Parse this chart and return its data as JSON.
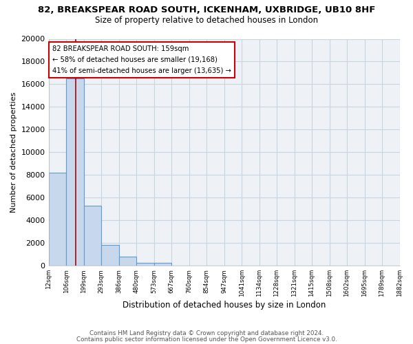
{
  "title": "82, BREAKSPEAR ROAD SOUTH, ICKENHAM, UXBRIDGE, UB10 8HF",
  "subtitle": "Size of property relative to detached houses in London",
  "xlabel": "Distribution of detached houses by size in London",
  "ylabel": "Number of detached properties",
  "bar_values": [
    8200,
    16500,
    5300,
    1850,
    800,
    270,
    230,
    0,
    0,
    0,
    0,
    0,
    0,
    0,
    0,
    0,
    0,
    0,
    0,
    0
  ],
  "bar_labels": [
    "12sqm",
    "106sqm",
    "199sqm",
    "293sqm",
    "386sqm",
    "480sqm",
    "573sqm",
    "667sqm",
    "760sqm",
    "854sqm",
    "947sqm",
    "1041sqm",
    "1134sqm",
    "1228sqm",
    "1321sqm",
    "1415sqm",
    "1508sqm",
    "1602sqm",
    "1695sqm",
    "1789sqm",
    "1882sqm"
  ],
  "bar_color": "#c8d8ec",
  "bar_edge_color": "#5b9bd5",
  "vline_color": "#aa0000",
  "vline_x": 1.53,
  "annotation_title": "82 BREAKSPEAR ROAD SOUTH: 159sqm",
  "annotation_line1": "← 58% of detached houses are smaller (19,168)",
  "annotation_line2": "41% of semi-detached houses are larger (13,635) →",
  "annotation_box_color": "#ffffff",
  "annotation_box_edge": "#cc0000",
  "ylim": [
    0,
    20000
  ],
  "yticks": [
    0,
    2000,
    4000,
    6000,
    8000,
    10000,
    12000,
    14000,
    16000,
    18000,
    20000
  ],
  "footer1": "Contains HM Land Registry data © Crown copyright and database right 2024.",
  "footer2": "Contains public sector information licensed under the Open Government Licence v3.0.",
  "background_color": "#ffffff",
  "grid_color": "#c8d4e0",
  "plot_bg_color": "#eef2f7"
}
